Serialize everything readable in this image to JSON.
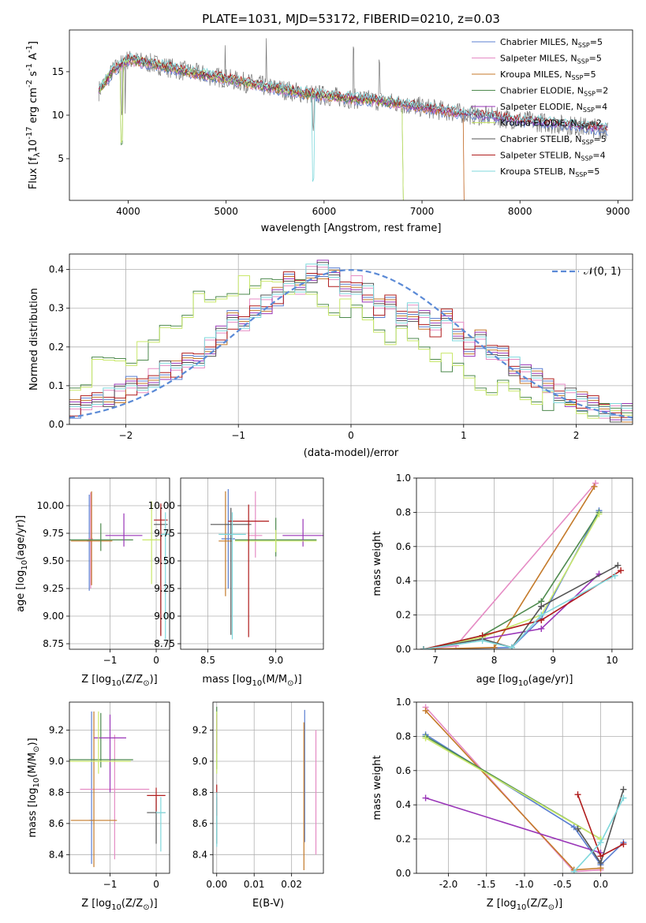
{
  "figure": {
    "title": "PLATE=1031, MJD=53172, FIBERID=0210, z=0.03"
  },
  "series_meta": [
    {
      "name": "Chabrier MILES, N",
      "nssp": "5",
      "color": "#5b7fd1"
    },
    {
      "name": "Salpeter MILES, N",
      "nssp": "5",
      "color": "#e58bc4"
    },
    {
      "name": "Kroupa MILES, N",
      "nssp": "5",
      "color": "#c47a2a"
    },
    {
      "name": "Chabrier ELODIE, N",
      "nssp": "2",
      "color": "#4e8a4e"
    },
    {
      "name": "Salpeter ELODIE, N",
      "nssp": "4",
      "color": "#9a36b8"
    },
    {
      "name": "Kroupa ELODIE, N",
      "nssp": "2",
      "color": "#c9e86a"
    },
    {
      "name": "Chabrier STELIB, N",
      "nssp": "5",
      "color": "#555555"
    },
    {
      "name": "Salpeter STELIB, N",
      "nssp": "4",
      "color": "#b01c1c"
    },
    {
      "name": "Kroupa STELIB, N",
      "nssp": "5",
      "color": "#7fd8dc"
    }
  ],
  "chart_data": [
    {
      "id": "spectrum",
      "type": "line",
      "title": "PLATE=1031, MJD=53172, FIBERID=0210, z=0.03",
      "xlabel": "wavelength [Angstrom, rest frame]",
      "ylabel": "Flux [f",
      "ylabel_sub": "λ",
      "ylabel_mid": "10",
      "ylabel_sup": "-17",
      "ylabel_rest": " erg cm",
      "ylabel_sup2": "-2",
      "ylabel_rest2": " s",
      "ylabel_sup3": "-1",
      "ylabel_rest3": " A",
      "ylabel_sup4": "-1",
      "ylabel_end": "]",
      "legend_sub": "SSP",
      "xlim": [
        3400,
        9150
      ],
      "ylim": [
        0.2,
        19.8
      ],
      "xticks": [
        4000,
        5000,
        6000,
        7000,
        8000,
        9000
      ],
      "yticks": [
        5,
        10,
        15
      ],
      "continuum": {
        "x": [
          3700,
          3850,
          4000,
          4300,
          4600,
          5000,
          5400,
          5800,
          6200,
          6600,
          7000,
          7400,
          7800,
          8200,
          8600,
          8900
        ],
        "y": [
          12.8,
          15.2,
          16.4,
          15.8,
          15.0,
          14.2,
          13.3,
          12.5,
          12.0,
          11.6,
          10.9,
          10.2,
          9.7,
          9.2,
          8.7,
          8.4
        ]
      }
    },
    {
      "id": "residuals",
      "type": "line",
      "xlabel": "(data-model)/error",
      "ylabel": "Normed distribution",
      "legend_label": "𝒩(0, 1)",
      "xlim": [
        -2.5,
        2.5
      ],
      "ylim": [
        0,
        0.44
      ],
      "xticks": [
        -2,
        -1,
        0,
        1,
        2
      ],
      "yticks": [
        0.0,
        0.1,
        0.2,
        0.3,
        0.4
      ],
      "groupA": [
        0.04,
        0.05,
        0.07,
        0.07,
        0.08,
        0.1,
        0.1,
        0.12,
        0.14,
        0.14,
        0.16,
        0.17,
        0.2,
        0.23,
        0.27,
        0.26,
        0.3,
        0.31,
        0.33,
        0.37,
        0.36,
        0.39,
        0.4,
        0.38,
        0.35,
        0.36,
        0.34,
        0.3,
        0.31,
        0.28,
        0.29,
        0.27,
        0.25,
        0.28,
        0.24,
        0.2,
        0.22,
        0.18,
        0.19,
        0.15,
        0.13,
        0.12,
        0.1,
        0.08,
        0.07,
        0.06,
        0.05,
        0.04,
        0.03,
        0.03
      ],
      "groupB": [
        0.1,
        0.12,
        0.15,
        0.16,
        0.17,
        0.17,
        0.19,
        0.2,
        0.25,
        0.26,
        0.3,
        0.32,
        0.31,
        0.33,
        0.35,
        0.36,
        0.34,
        0.37,
        0.38,
        0.36,
        0.35,
        0.33,
        0.31,
        0.3,
        0.3,
        0.29,
        0.27,
        0.25,
        0.23,
        0.23,
        0.21,
        0.2,
        0.18,
        0.16,
        0.14,
        0.12,
        0.1,
        0.1,
        0.09,
        0.08,
        0.07,
        0.07,
        0.06,
        0.05,
        0.05,
        0.04,
        0.04,
        0.03,
        0.03,
        0.03
      ],
      "gaussian": {
        "mu": 0,
        "sigma": 1
      }
    },
    {
      "id": "age_vs_Z",
      "type": "scatter",
      "xlabel": "Z [log",
      "xlabel_sub": "10",
      "xlabel_rest": "(Z/Z",
      "xlabel_sub2": "⊙",
      "xlabel_end": ")]",
      "ylabel": "age  [log",
      "ylabel_sub": "10",
      "ylabel_rest": "(age/yr)]",
      "xlim": [
        -1.88,
        0.29
      ],
      "ylim": [
        8.7,
        10.25
      ],
      "xticks": [
        -1,
        0
      ],
      "yticks": [
        8.75,
        9.0,
        9.25,
        9.5,
        9.75,
        10.0
      ],
      "points": [
        {
          "x": -1.45,
          "xerr": 0.05,
          "y": 9.68,
          "yerr": [
            0.45,
            0.42
          ]
        },
        {
          "x": -1.42,
          "xerr": 0.05,
          "y": 9.7,
          "yerr": [
            0.45,
            0.42
          ]
        },
        {
          "x": -1.4,
          "xerr": 0.45,
          "y": 9.68,
          "yerr": [
            0.4,
            0.45
          ]
        },
        {
          "x": -1.2,
          "xerr": 0.7,
          "y": 9.69,
          "yerr": [
            0.1,
            0.15
          ]
        },
        {
          "x": -0.7,
          "xerr": 0.4,
          "y": 9.73,
          "yerr": [
            0.1,
            0.2
          ]
        },
        {
          "x": -0.1,
          "xerr": 0.2,
          "y": 9.69,
          "yerr": [
            0.4,
            0.35
          ]
        },
        {
          "x": 0.1,
          "xerr": 0.15,
          "y": 9.83,
          "yerr": [
            1.0,
            0.15
          ]
        },
        {
          "x": 0.1,
          "xerr": 0.15,
          "y": 9.87,
          "yerr": [
            1.05,
            0.15
          ]
        },
        {
          "x": 0.2,
          "xerr": 0.1,
          "y": 9.74,
          "yerr": [
            0.95,
            0.2
          ]
        }
      ]
    },
    {
      "id": "age_vs_mass",
      "type": "scatter",
      "xlabel": "mass [log",
      "xlabel_sub": "10",
      "xlabel_rest": "(M/M",
      "xlabel_sub2": "⊙",
      "xlabel_end": ")]",
      "xlim": [
        8.3,
        9.35
      ],
      "ylim": [
        8.7,
        10.25
      ],
      "xticks": [
        8.5,
        9.0
      ],
      "yticks": [
        8.75,
        9.0,
        9.25,
        9.5,
        9.75,
        10.0
      ],
      "points": [
        {
          "x": 8.65,
          "xerr": 0.05,
          "y": 9.7,
          "yerr": [
            0.45,
            0.45
          ]
        },
        {
          "x": 8.85,
          "xerr": 0.05,
          "y": 9.73,
          "yerr": [
            0.2,
            0.4
          ]
        },
        {
          "x": 8.63,
          "xerr": 0.05,
          "y": 9.68,
          "yerr": [
            0.5,
            0.45
          ]
        },
        {
          "x": 9.0,
          "xerr": 0.3,
          "y": 9.69,
          "yerr": [
            0.15,
            0.2
          ]
        },
        {
          "x": 9.2,
          "xerr": 0.15,
          "y": 9.73,
          "yerr": [
            0.1,
            0.15
          ]
        },
        {
          "x": 9.0,
          "xerr": 0.3,
          "y": 9.68,
          "yerr": [
            0.1,
            0.1
          ]
        },
        {
          "x": 8.67,
          "xerr": 0.15,
          "y": 9.83,
          "yerr": [
            1.0,
            0.15
          ]
        },
        {
          "x": 8.8,
          "xerr": 0.15,
          "y": 9.86,
          "yerr": [
            1.05,
            0.15
          ]
        },
        {
          "x": 8.68,
          "xerr": 0.1,
          "y": 9.74,
          "yerr": [
            0.95,
            0.2
          ]
        }
      ]
    },
    {
      "id": "weight_vs_age",
      "type": "line",
      "xlabel": "age  [log",
      "xlabel_sub": "10",
      "xlabel_rest": "(age/yr)]",
      "ylabel": "mass weight",
      "xlim": [
        6.68,
        10.35
      ],
      "ylim": [
        0,
        1
      ],
      "xticks": [
        7,
        8,
        9,
        10
      ],
      "yticks": [
        0.0,
        0.2,
        0.4,
        0.6,
        0.8,
        1.0
      ],
      "lines": [
        {
          "x": [
            6.8,
            8.3,
            8.8,
            9.78
          ],
          "y": [
            0.0,
            0.01,
            0.18,
            0.81
          ]
        },
        {
          "x": [
            6.8,
            7.35,
            9.72
          ],
          "y": [
            0.0,
            0.02,
            0.97
          ]
        },
        {
          "x": [
            6.8,
            8.0,
            9.7
          ],
          "y": [
            0.0,
            0.01,
            0.95
          ]
        },
        {
          "x": [
            6.8,
            7.8,
            8.8,
            9.78
          ],
          "y": [
            0.0,
            0.08,
            0.28,
            0.8
          ]
        },
        {
          "x": [
            6.8,
            8.8,
            9.78
          ],
          "y": [
            0.0,
            0.12,
            0.44
          ]
        },
        {
          "x": [
            6.8,
            7.8,
            8.8,
            9.78
          ],
          "y": [
            0.0,
            0.07,
            0.2,
            0.79
          ]
        },
        {
          "x": [
            6.8,
            7.8,
            8.3,
            8.8,
            10.1
          ],
          "y": [
            0.0,
            0.06,
            0.01,
            0.25,
            0.49
          ]
        },
        {
          "x": [
            6.8,
            7.8,
            8.8,
            10.15
          ],
          "y": [
            0.0,
            0.08,
            0.17,
            0.46
          ]
        },
        {
          "x": [
            6.8,
            7.8,
            8.3,
            8.8,
            10.05
          ],
          "y": [
            0.0,
            0.05,
            0.01,
            0.2,
            0.43
          ]
        }
      ]
    },
    {
      "id": "mass_vs_Z",
      "type": "scatter",
      "xlabel": "Z [log",
      "xlabel_sub": "10",
      "xlabel_rest": "(Z/Z",
      "xlabel_sub2": "⊙",
      "xlabel_end": ")]",
      "ylabel": "mass [log",
      "ylabel_sub": "10",
      "ylabel_rest": "(M/M",
      "ylabel_sub2": "⊙",
      "ylabel_end": ")]",
      "xlim": [
        -1.88,
        0.29
      ],
      "ylim": [
        8.28,
        9.38
      ],
      "xticks": [
        -1,
        0
      ],
      "yticks": [
        8.4,
        8.6,
        8.8,
        9.0,
        9.2
      ],
      "points": [
        {
          "x": -1.4,
          "xerr": 0.05,
          "y": 8.62,
          "yerr": [
            0.28,
            0.7
          ]
        },
        {
          "x": -0.9,
          "xerr": 0.75,
          "y": 8.82,
          "yerr": [
            0.45,
            0.35
          ]
        },
        {
          "x": -1.35,
          "xerr": 0.5,
          "y": 8.62,
          "yerr": [
            0.3,
            0.7
          ]
        },
        {
          "x": -1.2,
          "xerr": 0.7,
          "y": 9.01,
          "yerr": [
            0.05,
            0.3
          ]
        },
        {
          "x": -1.0,
          "xerr": 0.35,
          "y": 9.15,
          "yerr": [
            0.35,
            0.15
          ]
        },
        {
          "x": -1.25,
          "xerr": 0.7,
          "y": 9.0,
          "yerr": [
            0.08,
            0.32
          ]
        },
        {
          "x": 0.0,
          "xerr": 0.2,
          "y": 8.67,
          "yerr": [
            0.2,
            0.1
          ]
        },
        {
          "x": 0.0,
          "xerr": 0.2,
          "y": 8.78,
          "yerr": [
            0.1,
            0.05
          ]
        },
        {
          "x": 0.1,
          "xerr": 0.1,
          "y": 8.67,
          "yerr": [
            0.25,
            0.1
          ]
        }
      ]
    },
    {
      "id": "mass_vs_EBV",
      "type": "scatter",
      "xlabel": "E(B-V)",
      "xlim": [
        -0.001,
        0.0285
      ],
      "ylim": [
        8.28,
        9.38
      ],
      "xticks": [
        0.0,
        0.01,
        0.02
      ],
      "xtick_labels": [
        "0.00",
        "0.01",
        "0.02"
      ],
      "yticks": [
        8.4,
        8.6,
        8.8,
        9.0,
        9.2
      ],
      "points": [
        {
          "x": 0.0235,
          "xerr": 0.0,
          "y": 8.78,
          "yerr": [
            0.3,
            0.55
          ]
        },
        {
          "x": 0.0265,
          "xerr": 0.0,
          "y": 8.75,
          "yerr": [
            0.35,
            0.45
          ]
        },
        {
          "x": 0.0233,
          "xerr": 0.0,
          "y": 8.7,
          "yerr": [
            0.4,
            0.55
          ]
        },
        {
          "x": 0.0,
          "xerr": 0.0,
          "y": 9.05,
          "yerr": [
            0.1,
            0.3
          ]
        },
        {
          "x": 0.0,
          "xerr": 0.0,
          "y": 9.15,
          "yerr": [
            0.1,
            0.15
          ]
        },
        {
          "x": 0.0,
          "xerr": 0.0,
          "y": 9.02,
          "yerr": [
            0.1,
            0.3
          ]
        },
        {
          "x": 0.0,
          "xerr": 0.0,
          "y": 8.67,
          "yerr": [
            0.2,
            0.1
          ]
        },
        {
          "x": 0.0,
          "xerr": 0.0,
          "y": 8.75,
          "yerr": [
            0.1,
            0.1
          ]
        },
        {
          "x": 0.0,
          "xerr": 0.0,
          "y": 8.6,
          "yerr": [
            0.15,
            0.2
          ]
        }
      ]
    },
    {
      "id": "weight_vs_Z",
      "type": "line",
      "xlabel": "Z [log",
      "xlabel_sub": "10",
      "xlabel_rest": "(Z/Z",
      "xlabel_sub2": "⊙",
      "xlabel_end": ")]",
      "ylabel": "mass weight",
      "xlim": [
        -2.42,
        0.42
      ],
      "ylim": [
        0,
        1
      ],
      "xticks": [
        -2.0,
        -1.5,
        -1.0,
        -0.5,
        0.0
      ],
      "yticks": [
        0.0,
        0.2,
        0.4,
        0.6,
        0.8,
        1.0
      ],
      "lines": [
        {
          "x": [
            -2.3,
            -0.35,
            0.0,
            0.3
          ],
          "y": [
            0.81,
            0.27,
            0.05,
            0.18
          ]
        },
        {
          "x": [
            -2.3,
            -0.35,
            0.0
          ],
          "y": [
            0.97,
            0.01,
            0.02
          ]
        },
        {
          "x": [
            -2.3,
            -0.35,
            0.0
          ],
          "y": [
            0.95,
            0.02,
            0.03
          ]
        },
        {
          "x": [
            -2.3,
            0.0
          ],
          "y": [
            0.8,
            0.2
          ]
        },
        {
          "x": [
            -2.3,
            0.0
          ],
          "y": [
            0.44,
            0.12
          ]
        },
        {
          "x": [
            -2.3,
            0.0
          ],
          "y": [
            0.79,
            0.2
          ]
        },
        {
          "x": [
            -0.3,
            0.0,
            0.3
          ],
          "y": [
            0.26,
            0.06,
            0.49
          ]
        },
        {
          "x": [
            -0.3,
            0.0,
            0.3
          ],
          "y": [
            0.46,
            0.1,
            0.17
          ]
        },
        {
          "x": [
            -0.35,
            0.0,
            0.3
          ],
          "y": [
            0.01,
            0.18,
            0.44
          ]
        }
      ]
    }
  ]
}
